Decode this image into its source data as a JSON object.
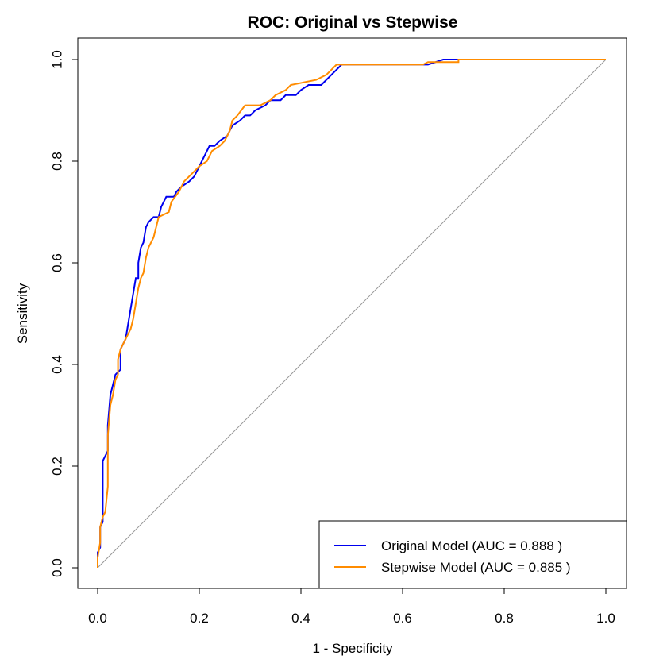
{
  "chart_data": {
    "type": "line",
    "title": "ROC: Original vs Stepwise",
    "xlabel": "1 - Specificity",
    "ylabel": "Sensitivity",
    "xlim": [
      0.0,
      1.0
    ],
    "ylim": [
      0.0,
      1.0
    ],
    "xticks": [
      "0.0",
      "0.2",
      "0.4",
      "0.6",
      "0.8",
      "1.0"
    ],
    "yticks": [
      "0.0",
      "0.2",
      "0.4",
      "0.6",
      "0.8",
      "1.0"
    ],
    "grid": false,
    "legend_position": "bottom-right",
    "reference_line": {
      "x": [
        0,
        1
      ],
      "y": [
        0,
        1
      ],
      "color": "#999999"
    },
    "series": [
      {
        "name": "Original Model (AUC = 0.888 )",
        "color": "#0000ee",
        "points": [
          [
            0.0,
            0.0
          ],
          [
            0.0,
            0.03
          ],
          [
            0.005,
            0.04
          ],
          [
            0.005,
            0.08
          ],
          [
            0.01,
            0.09
          ],
          [
            0.01,
            0.13
          ],
          [
            0.01,
            0.21
          ],
          [
            0.015,
            0.22
          ],
          [
            0.02,
            0.23
          ],
          [
            0.02,
            0.28
          ],
          [
            0.025,
            0.34
          ],
          [
            0.03,
            0.36
          ],
          [
            0.035,
            0.38
          ],
          [
            0.045,
            0.39
          ],
          [
            0.045,
            0.43
          ],
          [
            0.055,
            0.45
          ],
          [
            0.06,
            0.48
          ],
          [
            0.065,
            0.51
          ],
          [
            0.07,
            0.54
          ],
          [
            0.075,
            0.57
          ],
          [
            0.08,
            0.57
          ],
          [
            0.08,
            0.6
          ],
          [
            0.085,
            0.63
          ],
          [
            0.09,
            0.64
          ],
          [
            0.095,
            0.67
          ],
          [
            0.1,
            0.68
          ],
          [
            0.11,
            0.69
          ],
          [
            0.12,
            0.69
          ],
          [
            0.125,
            0.71
          ],
          [
            0.13,
            0.72
          ],
          [
            0.135,
            0.73
          ],
          [
            0.15,
            0.73
          ],
          [
            0.155,
            0.74
          ],
          [
            0.165,
            0.75
          ],
          [
            0.18,
            0.76
          ],
          [
            0.19,
            0.77
          ],
          [
            0.2,
            0.79
          ],
          [
            0.21,
            0.81
          ],
          [
            0.22,
            0.83
          ],
          [
            0.23,
            0.83
          ],
          [
            0.24,
            0.84
          ],
          [
            0.255,
            0.85
          ],
          [
            0.265,
            0.87
          ],
          [
            0.28,
            0.88
          ],
          [
            0.29,
            0.89
          ],
          [
            0.3,
            0.89
          ],
          [
            0.31,
            0.9
          ],
          [
            0.33,
            0.91
          ],
          [
            0.34,
            0.92
          ],
          [
            0.36,
            0.92
          ],
          [
            0.37,
            0.93
          ],
          [
            0.39,
            0.93
          ],
          [
            0.4,
            0.94
          ],
          [
            0.415,
            0.95
          ],
          [
            0.44,
            0.95
          ],
          [
            0.46,
            0.97
          ],
          [
            0.47,
            0.98
          ],
          [
            0.48,
            0.99
          ],
          [
            0.6,
            0.99
          ],
          [
            0.65,
            0.99
          ],
          [
            0.68,
            1.0
          ],
          [
            0.7,
            1.0
          ],
          [
            1.0,
            1.0
          ]
        ]
      },
      {
        "name": "Stepwise Model (AUC = 0.885 )",
        "color": "#ff8c00",
        "points": [
          [
            0.0,
            0.0
          ],
          [
            0.0,
            0.02
          ],
          [
            0.005,
            0.05
          ],
          [
            0.005,
            0.08
          ],
          [
            0.01,
            0.1
          ],
          [
            0.015,
            0.11
          ],
          [
            0.02,
            0.16
          ],
          [
            0.02,
            0.2
          ],
          [
            0.02,
            0.26
          ],
          [
            0.025,
            0.32
          ],
          [
            0.03,
            0.34
          ],
          [
            0.035,
            0.37
          ],
          [
            0.04,
            0.38
          ],
          [
            0.04,
            0.41
          ],
          [
            0.045,
            0.43
          ],
          [
            0.055,
            0.45
          ],
          [
            0.06,
            0.46
          ],
          [
            0.065,
            0.47
          ],
          [
            0.07,
            0.49
          ],
          [
            0.075,
            0.52
          ],
          [
            0.08,
            0.55
          ],
          [
            0.085,
            0.57
          ],
          [
            0.09,
            0.58
          ],
          [
            0.095,
            0.61
          ],
          [
            0.1,
            0.63
          ],
          [
            0.11,
            0.65
          ],
          [
            0.115,
            0.67
          ],
          [
            0.12,
            0.69
          ],
          [
            0.14,
            0.7
          ],
          [
            0.145,
            0.72
          ],
          [
            0.16,
            0.74
          ],
          [
            0.17,
            0.76
          ],
          [
            0.19,
            0.78
          ],
          [
            0.2,
            0.79
          ],
          [
            0.215,
            0.8
          ],
          [
            0.225,
            0.82
          ],
          [
            0.24,
            0.83
          ],
          [
            0.25,
            0.84
          ],
          [
            0.26,
            0.86
          ],
          [
            0.265,
            0.88
          ],
          [
            0.275,
            0.89
          ],
          [
            0.29,
            0.91
          ],
          [
            0.32,
            0.91
          ],
          [
            0.34,
            0.92
          ],
          [
            0.35,
            0.93
          ],
          [
            0.37,
            0.94
          ],
          [
            0.38,
            0.95
          ],
          [
            0.43,
            0.96
          ],
          [
            0.45,
            0.97
          ],
          [
            0.46,
            0.98
          ],
          [
            0.47,
            0.99
          ],
          [
            0.64,
            0.99
          ],
          [
            0.65,
            0.995
          ],
          [
            0.71,
            0.995
          ],
          [
            0.71,
            1.0
          ],
          [
            1.0,
            1.0
          ]
        ]
      }
    ]
  }
}
